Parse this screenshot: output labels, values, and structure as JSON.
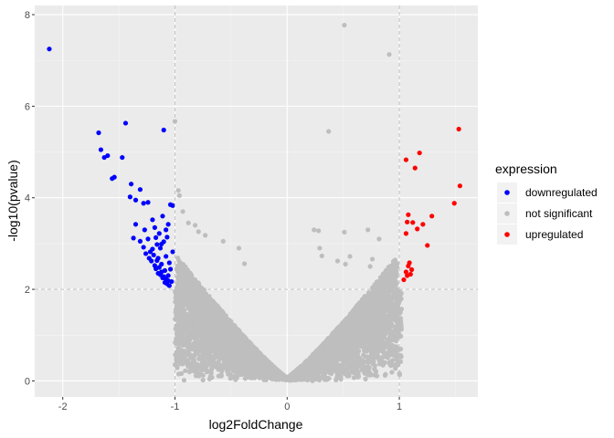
{
  "chart_data": {
    "type": "scatter",
    "title": "",
    "xlabel": "log2FoldChange",
    "ylabel": "-log10(pvalue)",
    "xlim": [
      -2.25,
      1.7
    ],
    "ylim": [
      -0.35,
      8.2
    ],
    "x_ticks": [
      -2,
      -1,
      0,
      1
    ],
    "x_tick_labels": [
      "-2",
      "-1",
      "0",
      "1"
    ],
    "y_ticks": [
      0,
      2,
      4,
      6,
      8
    ],
    "y_tick_labels": [
      "0",
      "2",
      "4",
      "6",
      "8"
    ],
    "thresholds": {
      "x": [
        -1,
        1
      ],
      "y": 2
    },
    "grid": true,
    "legend": {
      "title": "expression",
      "position": "right",
      "entries": [
        "downregulated",
        "not significant",
        "upregulated"
      ]
    },
    "colors": {
      "downregulated": "#0000ff",
      "not significant": "#bebebe",
      "upregulated": "#ff0000",
      "panel_background": "#ebebeb",
      "grid_major": "#ffffff",
      "threshold_line": "#c8c8c8"
    },
    "series": [
      {
        "name": "downregulated",
        "points": [
          [
            -2.12,
            7.25
          ],
          [
            -1.68,
            5.42
          ],
          [
            -1.66,
            5.05
          ],
          [
            -1.63,
            4.88
          ],
          [
            -1.6,
            4.92
          ],
          [
            -1.56,
            4.42
          ],
          [
            -1.54,
            4.45
          ],
          [
            -1.44,
            5.63
          ],
          [
            -1.47,
            4.88
          ],
          [
            -1.39,
            4.3
          ],
          [
            -1.35,
            3.95
          ],
          [
            -1.31,
            4.18
          ],
          [
            -1.28,
            3.88
          ],
          [
            -1.24,
            3.9
          ],
          [
            -1.1,
            5.48
          ],
          [
            -1.04,
            3.85
          ],
          [
            -1.02,
            3.83
          ],
          [
            -1.4,
            4.02
          ],
          [
            -1.35,
            3.42
          ],
          [
            -1.37,
            3.12
          ],
          [
            -1.31,
            3.05
          ],
          [
            -1.28,
            2.92
          ],
          [
            -1.27,
            3.3
          ],
          [
            -1.24,
            3.1
          ],
          [
            -1.22,
            2.82
          ],
          [
            -1.2,
            3.52
          ],
          [
            -1.18,
            3.35
          ],
          [
            -1.17,
            3.13
          ],
          [
            -1.16,
            2.98
          ],
          [
            -1.15,
            2.68
          ],
          [
            -1.14,
            3.22
          ],
          [
            -1.13,
            2.9
          ],
          [
            -1.12,
            2.55
          ],
          [
            -1.11,
            3.6
          ],
          [
            -1.1,
            3.04
          ],
          [
            -1.09,
            2.41
          ],
          [
            -1.08,
            2.72
          ],
          [
            -1.07,
            3.14
          ],
          [
            -1.06,
            2.3
          ],
          [
            -1.05,
            2.58
          ],
          [
            -1.04,
            2.44
          ],
          [
            -1.03,
            2.17
          ],
          [
            -1.02,
            2.82
          ],
          [
            -1.21,
            2.62
          ],
          [
            -1.19,
            2.75
          ],
          [
            -1.17,
            2.45
          ],
          [
            -1.15,
            2.35
          ],
          [
            -1.13,
            2.32
          ],
          [
            -1.11,
            2.25
          ],
          [
            -1.09,
            2.15
          ],
          [
            -1.07,
            2.12
          ],
          [
            -1.06,
            2.19
          ],
          [
            -1.05,
            2.08
          ],
          [
            -1.18,
            2.52
          ],
          [
            -1.16,
            2.63
          ],
          [
            -1.14,
            2.48
          ],
          [
            -1.12,
            2.38
          ],
          [
            -1.1,
            2.28
          ],
          [
            -1.08,
            2.22
          ],
          [
            -1.26,
            2.78
          ],
          [
            -1.23,
            2.68
          ],
          [
            -1.2,
            2.88
          ],
          [
            -1.12,
            2.99
          ],
          [
            -1.08,
            3.3
          ],
          [
            -1.06,
            3.42
          ]
        ]
      },
      {
        "name": "upregulated",
        "points": [
          [
            1.53,
            5.5
          ],
          [
            1.18,
            4.98
          ],
          [
            1.14,
            4.65
          ],
          [
            1.06,
            4.83
          ],
          [
            1.54,
            4.26
          ],
          [
            1.49,
            3.88
          ],
          [
            1.29,
            3.6
          ],
          [
            1.08,
            3.63
          ],
          [
            1.07,
            3.47
          ],
          [
            1.12,
            3.46
          ],
          [
            1.16,
            3.32
          ],
          [
            1.21,
            3.42
          ],
          [
            1.25,
            2.96
          ],
          [
            1.06,
            3.22
          ],
          [
            1.09,
            2.58
          ],
          [
            1.08,
            2.51
          ],
          [
            1.11,
            2.43
          ],
          [
            1.06,
            2.38
          ],
          [
            1.07,
            2.3
          ],
          [
            1.1,
            2.33
          ],
          [
            1.04,
            2.21
          ]
        ]
      }
    ],
    "not_significant_outliers": [
      [
        0.51,
        7.77
      ],
      [
        0.91,
        7.13
      ],
      [
        -1.0,
        5.67
      ],
      [
        0.37,
        5.45
      ],
      [
        -0.97,
        4.16
      ],
      [
        -0.96,
        4.05
      ],
      [
        -0.93,
        3.7
      ],
      [
        -0.88,
        3.45
      ],
      [
        -0.82,
        3.4
      ],
      [
        -0.79,
        3.26
      ],
      [
        -0.73,
        3.18
      ],
      [
        -0.57,
        3.05
      ],
      [
        -0.43,
        2.9
      ],
      [
        -0.38,
        2.56
      ],
      [
        0.24,
        3.3
      ],
      [
        0.28,
        3.28
      ],
      [
        0.51,
        3.25
      ],
      [
        0.72,
        3.3
      ],
      [
        0.82,
        3.1
      ],
      [
        0.76,
        2.66
      ],
      [
        0.74,
        2.5
      ],
      [
        0.56,
        2.72
      ],
      [
        0.52,
        2.55
      ],
      [
        0.45,
        2.62
      ],
      [
        0.29,
        2.9
      ],
      [
        0.31,
        2.73
      ]
    ]
  }
}
